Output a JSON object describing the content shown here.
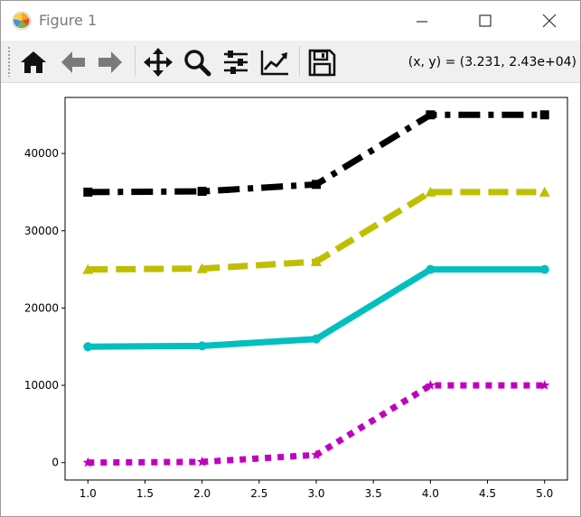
{
  "window": {
    "title": "Figure 1",
    "controls": [
      "minimize-icon",
      "maximize-icon",
      "close-icon"
    ]
  },
  "toolbar": {
    "buttons": [
      {
        "name": "home",
        "icon": "home-icon"
      },
      {
        "name": "back",
        "icon": "arrow-left-icon"
      },
      {
        "name": "forward",
        "icon": "arrow-right-icon"
      },
      {
        "name": "pan",
        "icon": "move-icon"
      },
      {
        "name": "zoom",
        "icon": "zoom-icon"
      },
      {
        "name": "subplots",
        "icon": "sliders-icon"
      },
      {
        "name": "customize",
        "icon": "line-chart-icon"
      },
      {
        "name": "save",
        "icon": "save-icon"
      }
    ],
    "coords": "(x, y) = (3.231, 2.43e+04)"
  },
  "chart_data": {
    "type": "line",
    "title": "",
    "xlabel": "",
    "ylabel": "",
    "x": [
      1,
      2,
      3,
      4,
      5
    ],
    "xlim": [
      0.8,
      5.2
    ],
    "ylim": [
      -2250,
      47250
    ],
    "xticks": [
      1.0,
      1.5,
      2.0,
      2.5,
      3.0,
      3.5,
      4.0,
      4.5,
      5.0
    ],
    "xtick_labels": [
      "1.0",
      "1.5",
      "2.0",
      "2.5",
      "3.0",
      "3.5",
      "4.0",
      "4.5",
      "5.0"
    ],
    "yticks": [
      0,
      10000,
      20000,
      30000,
      40000
    ],
    "ytick_labels": [
      "0",
      "10000",
      "20000",
      "30000",
      "40000"
    ],
    "grid": false,
    "legend": "none",
    "series": [
      {
        "values": [
          0,
          100,
          1000,
          10000,
          10000
        ],
        "color": "#bf00bf",
        "linestyle": "dotted",
        "marker": "star"
      },
      {
        "values": [
          15000,
          15100,
          16000,
          25000,
          25000
        ],
        "color": "#00bfbf",
        "linestyle": "solid",
        "marker": "circle"
      },
      {
        "values": [
          25000,
          25100,
          26000,
          35000,
          35000
        ],
        "color": "#bfbf00",
        "linestyle": "dashed",
        "marker": "triangle"
      },
      {
        "values": [
          35000,
          35100,
          36000,
          45000,
          45000
        ],
        "color": "#000000",
        "linestyle": "dashdot",
        "marker": "square"
      }
    ]
  }
}
